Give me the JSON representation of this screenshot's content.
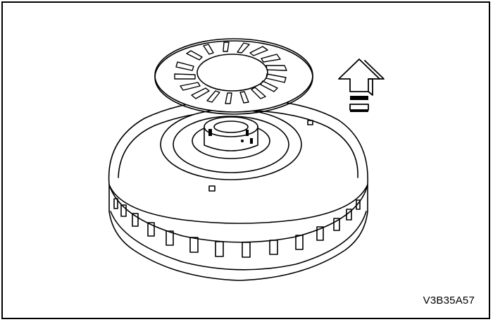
{
  "figure": {
    "id_label": "V3B35A57",
    "subject": "clutch-drum-with-thrust-washer",
    "arrow_direction": "up"
  },
  "colors": {
    "line": "#000000",
    "background": "#ffffff"
  }
}
